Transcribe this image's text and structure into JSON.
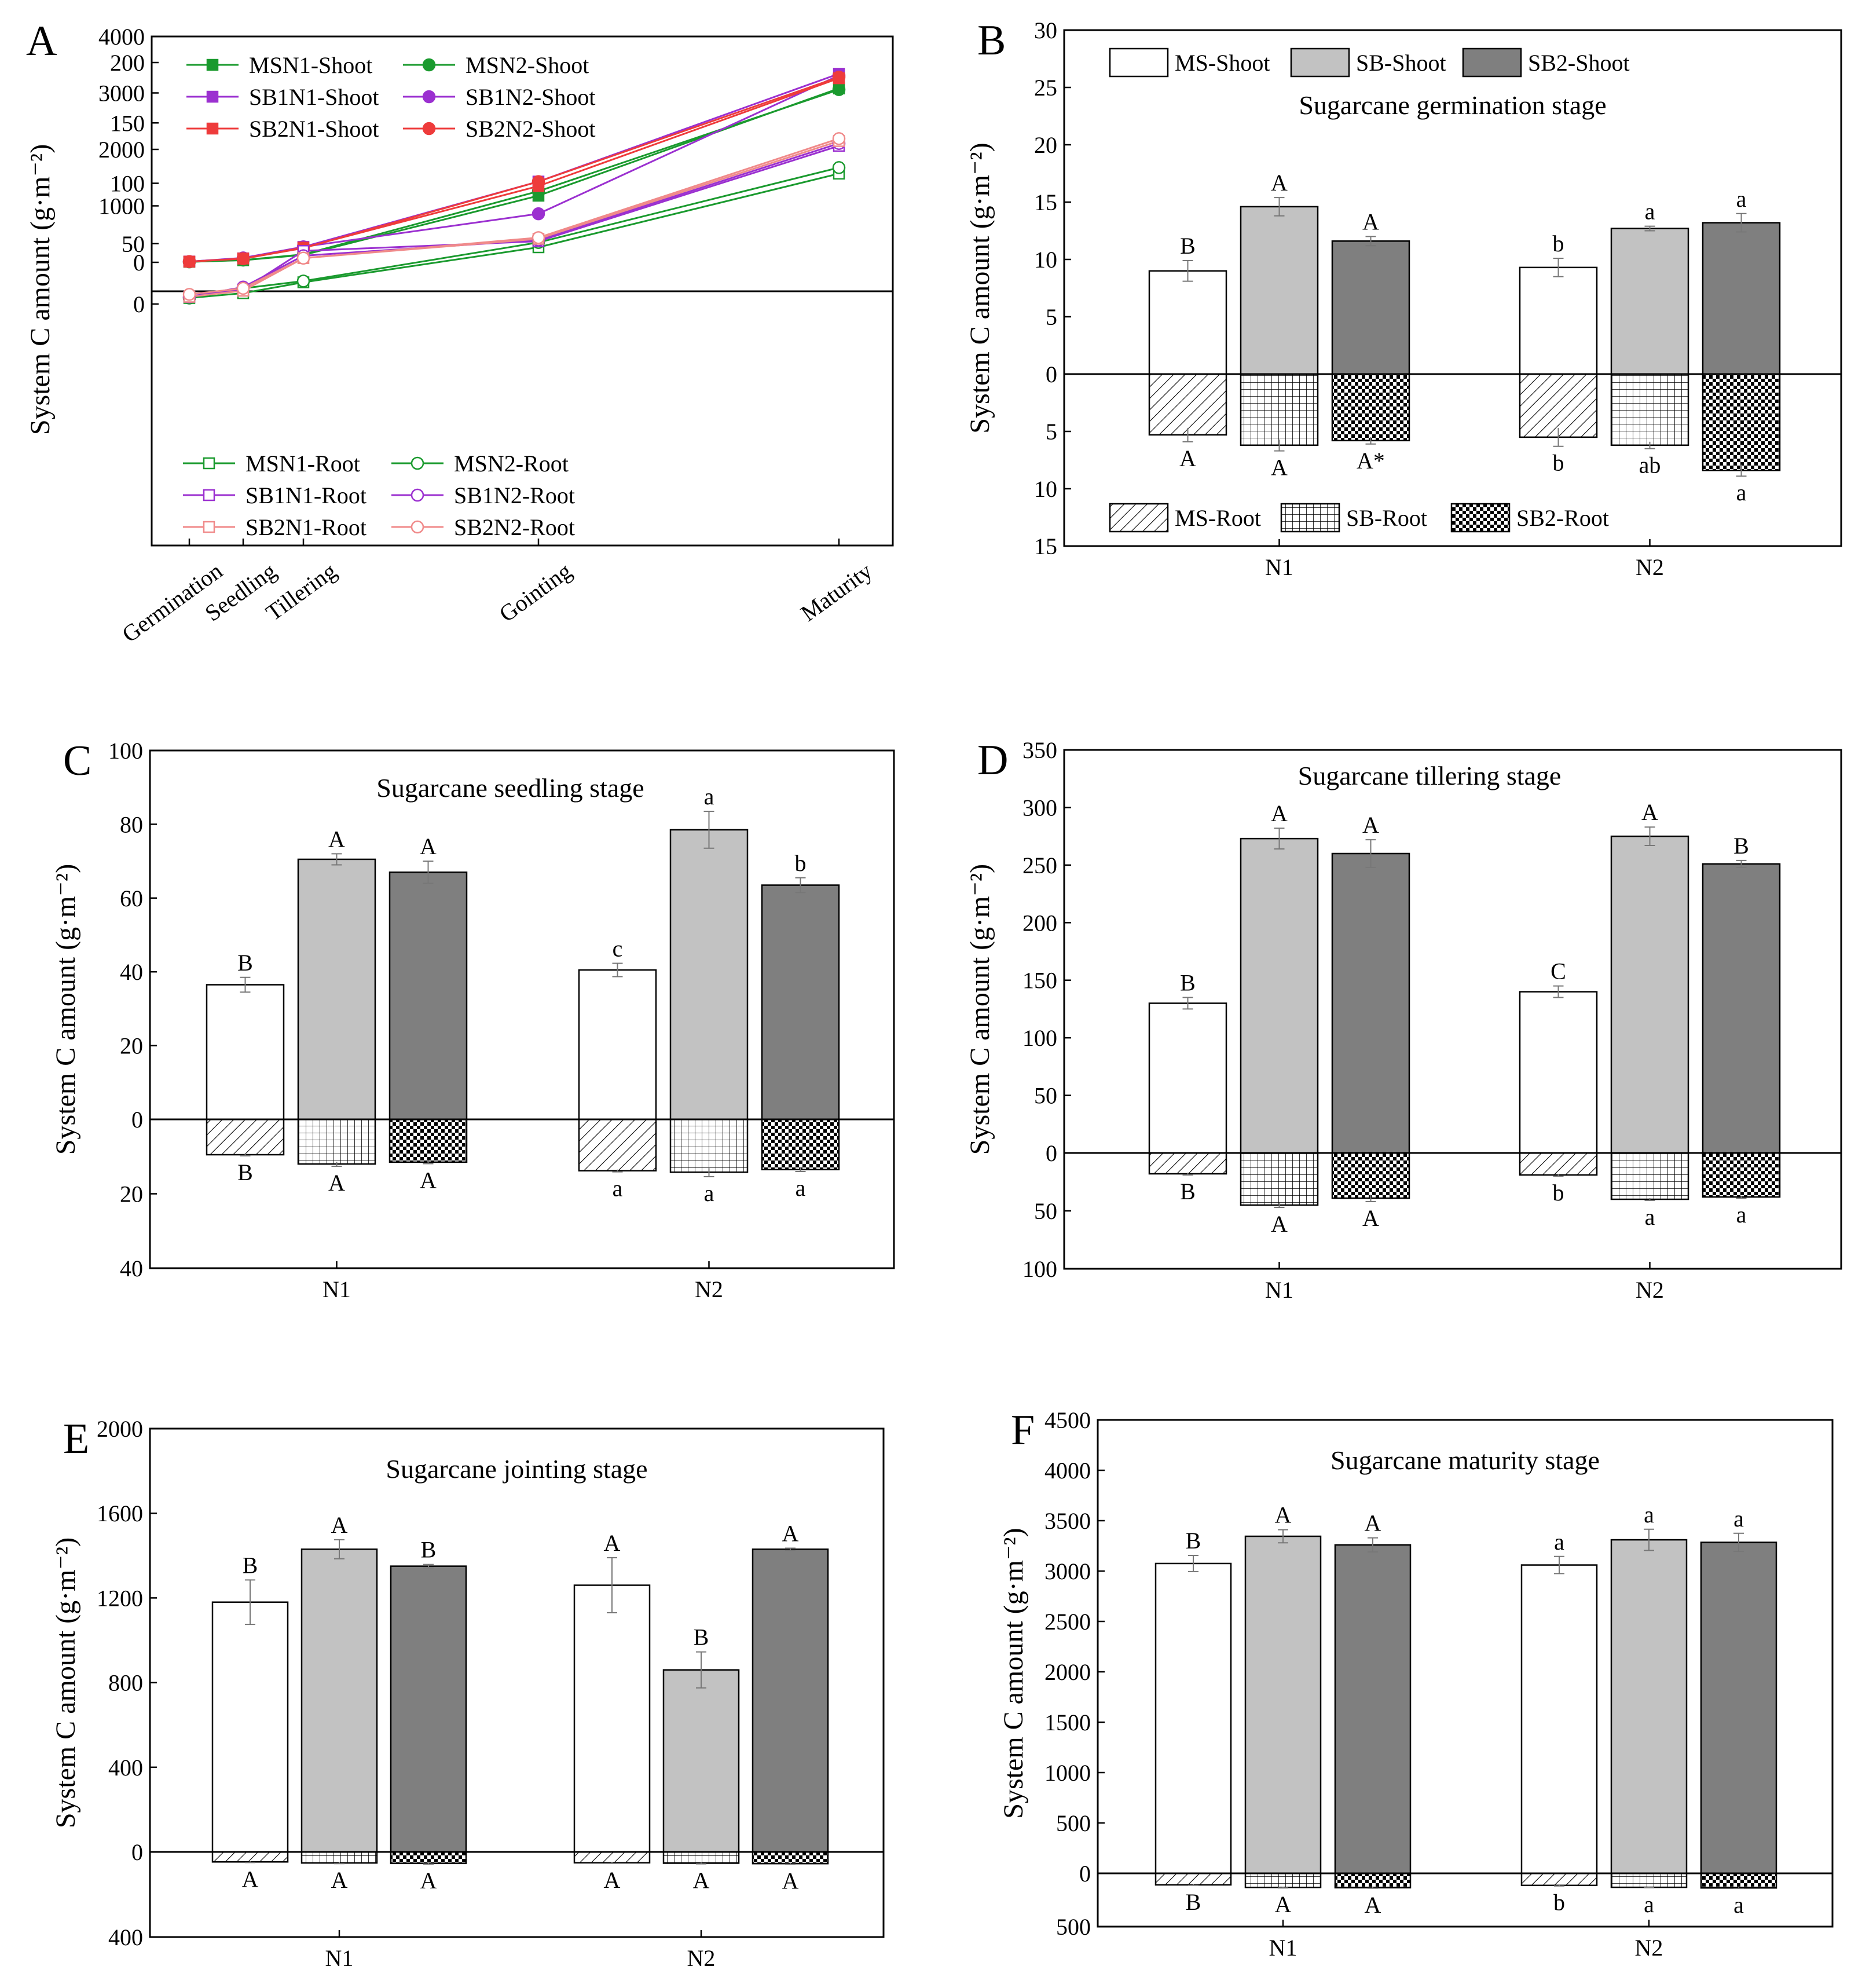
{
  "panel_A": {
    "letter": "A",
    "ylabel": "System C amount (g·m⁻²)",
    "stages": [
      "Germination",
      "Seedling",
      "Tillering",
      "Gointing",
      "Maturity"
    ],
    "shoot_axis": {
      "ylim": [
        0,
        4000
      ],
      "ticks": [
        "0",
        "1000",
        "2000",
        "3000",
        "4000"
      ]
    },
    "root_axis": {
      "ylim": [
        0,
        200
      ],
      "ticks": [
        "0",
        "50",
        "100",
        "150",
        "200"
      ]
    },
    "legend_shoot": [
      "MSN1-Shoot",
      "MSN2-Shoot",
      "SB1N1-Shoot",
      "SB1N2-Shoot",
      "SB2N1-Shoot",
      "SB2N2-Shoot"
    ],
    "legend_root": [
      "MSN1-Root",
      "MSN2-Root",
      "SB1N1-Root",
      "SB1N2-Root",
      "SB2N1-Root",
      "SB2N2-Root"
    ]
  },
  "panel_B": {
    "letter": "B",
    "ylabel": "System C amount (g·m⁻²)",
    "title": "Sugarcane germination stage",
    "legend_shoot": [
      "MS-Shoot",
      "SB-Shoot",
      "SB2-Shoot"
    ],
    "legend_root": [
      "MS-Root",
      "SB-Root",
      "SB2-Root"
    ],
    "ytop": [
      "0",
      "5",
      "10",
      "15",
      "20",
      "25",
      "30"
    ],
    "ybottom": [
      "5",
      "10",
      "15"
    ],
    "groups": [
      "N1",
      "N2"
    ]
  },
  "panel_C": {
    "letter": "C",
    "ylabel": "System C amount (g·m⁻²)",
    "title": "Sugarcane seedling stage",
    "ytop": [
      "0",
      "20",
      "40",
      "60",
      "80",
      "100"
    ],
    "ybottom": [
      "20",
      "40"
    ],
    "groups": [
      "N1",
      "N2"
    ]
  },
  "panel_D": {
    "letter": "D",
    "ylabel": "System C amount (g·m⁻²)",
    "title": "Sugarcane tillering stage",
    "ytop": [
      "0",
      "50",
      "100",
      "150",
      "200",
      "250",
      "300",
      "350"
    ],
    "ybottom": [
      "50",
      "100"
    ],
    "groups": [
      "N1",
      "N2"
    ]
  },
  "panel_E": {
    "letter": "E",
    "ylabel": "System C amount (g·m⁻²)",
    "title": "Sugarcane  jointing stage",
    "ytop": [
      "0",
      "400",
      "800",
      "1200",
      "1600",
      "2000"
    ],
    "ybottom": [
      "400"
    ],
    "groups": [
      "N1",
      "N2"
    ]
  },
  "panel_F": {
    "letter": "F",
    "ylabel": "System C amount (g·m⁻²)",
    "title": "Sugarcane maturity stage",
    "ytop": [
      "0",
      "500",
      "1000",
      "1500",
      "2000",
      "2500",
      "3000",
      "3500",
      "4000",
      "4500"
    ],
    "ybottom": [
      "500"
    ],
    "groups": [
      "N1",
      "N2"
    ]
  },
  "chart_data": [
    {
      "panel": "A",
      "type": "line",
      "title": "",
      "x": [
        "Germination",
        "Seedling",
        "Tillering",
        "Gointing",
        "Maturity"
      ],
      "xpos": [
        0,
        1,
        2,
        5,
        10
      ],
      "xlabel": "",
      "ylabel": "System C amount (g·m⁻²)",
      "series": [
        {
          "name": "MSN1-Shoot",
          "part": "shoot",
          "color": "#1a9a2e",
          "marker": "square",
          "values": [
            9,
            37,
            131,
            1180,
            3080
          ]
        },
        {
          "name": "MSN2-Shoot",
          "part": "shoot",
          "color": "#1a9a2e",
          "marker": "circle",
          "values": [
            9,
            40,
            140,
            1260,
            3060
          ]
        },
        {
          "name": "SB1N1-Shoot",
          "part": "shoot",
          "color": "#9b30d0",
          "marker": "square",
          "values": [
            14,
            70,
            273,
            1430,
            3340
          ]
        },
        {
          "name": "SB1N2-Shoot",
          "part": "shoot",
          "color": "#9b30d0",
          "marker": "circle",
          "values": [
            13,
            78,
            275,
            860,
            3310
          ]
        },
        {
          "name": "SB2N1-Shoot",
          "part": "shoot",
          "color": "#ee3b3b",
          "marker": "square",
          "values": [
            12,
            67,
            260,
            1350,
            3260
          ]
        },
        {
          "name": "SB2N2-Shoot",
          "part": "shoot",
          "color": "#ee3b3b",
          "marker": "circle",
          "values": [
            13,
            64,
            251,
            1430,
            3280
          ]
        },
        {
          "name": "MSN1-Root",
          "part": "root",
          "color": "#1a9a2e",
          "marker": "open-square",
          "values": [
            5,
            9,
            18,
            47,
            108
          ]
        },
        {
          "name": "MSN2-Root",
          "part": "root",
          "color": "#1a9a2e",
          "marker": "open-circle",
          "values": [
            5,
            13,
            19,
            51,
            113
          ]
        },
        {
          "name": "SB1N1-Root",
          "part": "root",
          "color": "#9b30d0",
          "marker": "open-square",
          "values": [
            6,
            12,
            44,
            52,
            131
          ]
        },
        {
          "name": "SB1N2-Root",
          "part": "root",
          "color": "#9b30d0",
          "marker": "open-circle",
          "values": [
            6,
            14,
            40,
            53,
            133
          ]
        },
        {
          "name": "SB2N1-Root",
          "part": "root",
          "color": "#f08a8a",
          "marker": "open-square",
          "values": [
            6,
            11,
            38,
            54,
            135
          ]
        },
        {
          "name": "SB2N2-Root",
          "part": "root",
          "color": "#f08a8a",
          "marker": "open-circle",
          "values": [
            8,
            13,
            38,
            55,
            137
          ]
        }
      ]
    },
    {
      "panel": "B",
      "type": "bar",
      "title": "Sugarcane germination stage",
      "categories": [
        "N1",
        "N2"
      ],
      "ylim_shoot": [
        0,
        30
      ],
      "ylim_root": [
        0,
        15
      ],
      "series": [
        {
          "name": "MS-Shoot",
          "part": "shoot",
          "values": [
            9.0,
            9.3
          ],
          "errors": [
            0.9,
            0.8
          ],
          "labels": [
            "B",
            "b"
          ]
        },
        {
          "name": "SB-Shoot",
          "part": "shoot",
          "values": [
            14.6,
            12.7
          ],
          "errors": [
            0.8,
            0.2
          ],
          "labels": [
            "A",
            "a"
          ]
        },
        {
          "name": "SB2-Shoot",
          "part": "shoot",
          "values": [
            11.6,
            13.2
          ],
          "errors": [
            0.4,
            0.8
          ],
          "labels": [
            "A",
            "a"
          ]
        },
        {
          "name": "MS-Root",
          "part": "root",
          "values": [
            5.3,
            5.5
          ],
          "errors": [
            0.6,
            0.8
          ],
          "labels": [
            "A",
            "b"
          ]
        },
        {
          "name": "SB-Root",
          "part": "root",
          "values": [
            6.2,
            6.2
          ],
          "errors": [
            0.5,
            0.3
          ],
          "labels": [
            "A",
            "ab"
          ]
        },
        {
          "name": "SB2-Root",
          "part": "root",
          "values": [
            5.8,
            8.4
          ],
          "errors": [
            0.3,
            0.5
          ],
          "labels": [
            "A*",
            "a"
          ]
        }
      ]
    },
    {
      "panel": "C",
      "type": "bar",
      "title": "Sugarcane seedling stage",
      "categories": [
        "N1",
        "N2"
      ],
      "ylim_shoot": [
        0,
        100
      ],
      "ylim_root": [
        0,
        40
      ],
      "series": [
        {
          "name": "MS-Shoot",
          "part": "shoot",
          "values": [
            36.5,
            40.5
          ],
          "errors": [
            2.0,
            1.8
          ],
          "labels": [
            "B",
            "c"
          ]
        },
        {
          "name": "SB-Shoot",
          "part": "shoot",
          "values": [
            70.5,
            78.5
          ],
          "errors": [
            1.5,
            5.0
          ],
          "labels": [
            "A",
            "a"
          ]
        },
        {
          "name": "SB2-Shoot",
          "part": "shoot",
          "values": [
            67.0,
            63.5
          ],
          "errors": [
            3.0,
            2.0
          ],
          "labels": [
            "A",
            "b"
          ]
        },
        {
          "name": "MS-Root",
          "part": "root",
          "values": [
            9.5,
            13.8
          ],
          "errors": [
            0.3,
            0.3
          ],
          "labels": [
            "B",
            "a"
          ]
        },
        {
          "name": "SB-Root",
          "part": "root",
          "values": [
            12.0,
            14.2
          ],
          "errors": [
            0.6,
            1.2
          ],
          "labels": [
            "A",
            "a"
          ]
        },
        {
          "name": "SB2-Root",
          "part": "root",
          "values": [
            11.5,
            13.5
          ],
          "errors": [
            0.4,
            0.5
          ],
          "labels": [
            "A",
            "a"
          ]
        }
      ]
    },
    {
      "panel": "D",
      "type": "bar",
      "title": "Sugarcane tillering stage",
      "categories": [
        "N1",
        "N2"
      ],
      "ylim_shoot": [
        0,
        350
      ],
      "ylim_root": [
        0,
        100
      ],
      "series": [
        {
          "name": "MS-Shoot",
          "part": "shoot",
          "values": [
            130,
            140
          ],
          "errors": [
            5,
            5
          ],
          "labels": [
            "B",
            "C"
          ]
        },
        {
          "name": "SB-Shoot",
          "part": "shoot",
          "values": [
            273,
            275
          ],
          "errors": [
            9,
            8
          ],
          "labels": [
            "A",
            "A"
          ]
        },
        {
          "name": "SB2-Shoot",
          "part": "shoot",
          "values": [
            260,
            251
          ],
          "errors": [
            12,
            3
          ],
          "labels": [
            "A",
            "B"
          ]
        },
        {
          "name": "MS-Root",
          "part": "root",
          "values": [
            18,
            19
          ],
          "errors": [
            1,
            1
          ],
          "labels": [
            "B",
            "b"
          ]
        },
        {
          "name": "SB-Root",
          "part": "root",
          "values": [
            45,
            40
          ],
          "errors": [
            2,
            1
          ],
          "labels": [
            "A",
            "a"
          ]
        },
        {
          "name": "SB2-Root",
          "part": "root",
          "values": [
            39,
            38
          ],
          "errors": [
            3,
            1
          ],
          "labels": [
            "A",
            "a"
          ]
        }
      ]
    },
    {
      "panel": "E",
      "type": "bar",
      "title": "Sugarcane  jointing stage",
      "categories": [
        "N1",
        "N2"
      ],
      "ylim_shoot": [
        0,
        2000
      ],
      "ylim_root": [
        0,
        400
      ],
      "series": [
        {
          "name": "MS-Shoot",
          "part": "shoot",
          "values": [
            1180,
            1260
          ],
          "errors": [
            105,
            130
          ],
          "labels": [
            "B",
            "A"
          ]
        },
        {
          "name": "SB-Shoot",
          "part": "shoot",
          "values": [
            1430,
            860
          ],
          "errors": [
            45,
            85
          ],
          "labels": [
            "A",
            "B"
          ]
        },
        {
          "name": "SB2-Shoot",
          "part": "shoot",
          "values": [
            1350,
            1430
          ],
          "errors": [
            8,
            5
          ],
          "labels": [
            "B",
            "A"
          ]
        },
        {
          "name": "MS-Root",
          "part": "root",
          "values": [
            47,
            51
          ],
          "errors": [
            3,
            3
          ],
          "labels": [
            "A",
            "A"
          ]
        },
        {
          "name": "SB-Root",
          "part": "root",
          "values": [
            52,
            53
          ],
          "errors": [
            3,
            3
          ],
          "labels": [
            "A",
            "A"
          ]
        },
        {
          "name": "SB2-Root",
          "part": "root",
          "values": [
            54,
            55
          ],
          "errors": [
            3,
            3
          ],
          "labels": [
            "A",
            "A"
          ]
        }
      ]
    },
    {
      "panel": "F",
      "type": "bar",
      "title": "Sugarcane maturity stage",
      "categories": [
        "N1",
        "N2"
      ],
      "ylim_shoot": [
        0,
        4500
      ],
      "ylim_root": [
        0,
        500
      ],
      "series": [
        {
          "name": "MS-Shoot",
          "part": "shoot",
          "values": [
            3075,
            3060
          ],
          "errors": [
            80,
            85
          ],
          "labels": [
            "B",
            "a"
          ]
        },
        {
          "name": "SB-Shoot",
          "part": "shoot",
          "values": [
            3345,
            3310
          ],
          "errors": [
            65,
            105
          ],
          "labels": [
            "A",
            "a"
          ]
        },
        {
          "name": "SB2-Shoot",
          "part": "shoot",
          "values": [
            3260,
            3285
          ],
          "errors": [
            70,
            90
          ],
          "labels": [
            "A",
            "a"
          ]
        },
        {
          "name": "MS-Root",
          "part": "root",
          "values": [
            108,
            113
          ],
          "errors": [
            5,
            5
          ],
          "labels": [
            "B",
            "b"
          ]
        },
        {
          "name": "SB-Root",
          "part": "root",
          "values": [
            132,
            131
          ],
          "errors": [
            5,
            4
          ],
          "labels": [
            "A",
            "a"
          ]
        },
        {
          "name": "SB2-Root",
          "part": "root",
          "values": [
            135,
            137
          ],
          "errors": [
            5,
            5
          ],
          "labels": [
            "A",
            "a"
          ]
        }
      ]
    }
  ]
}
